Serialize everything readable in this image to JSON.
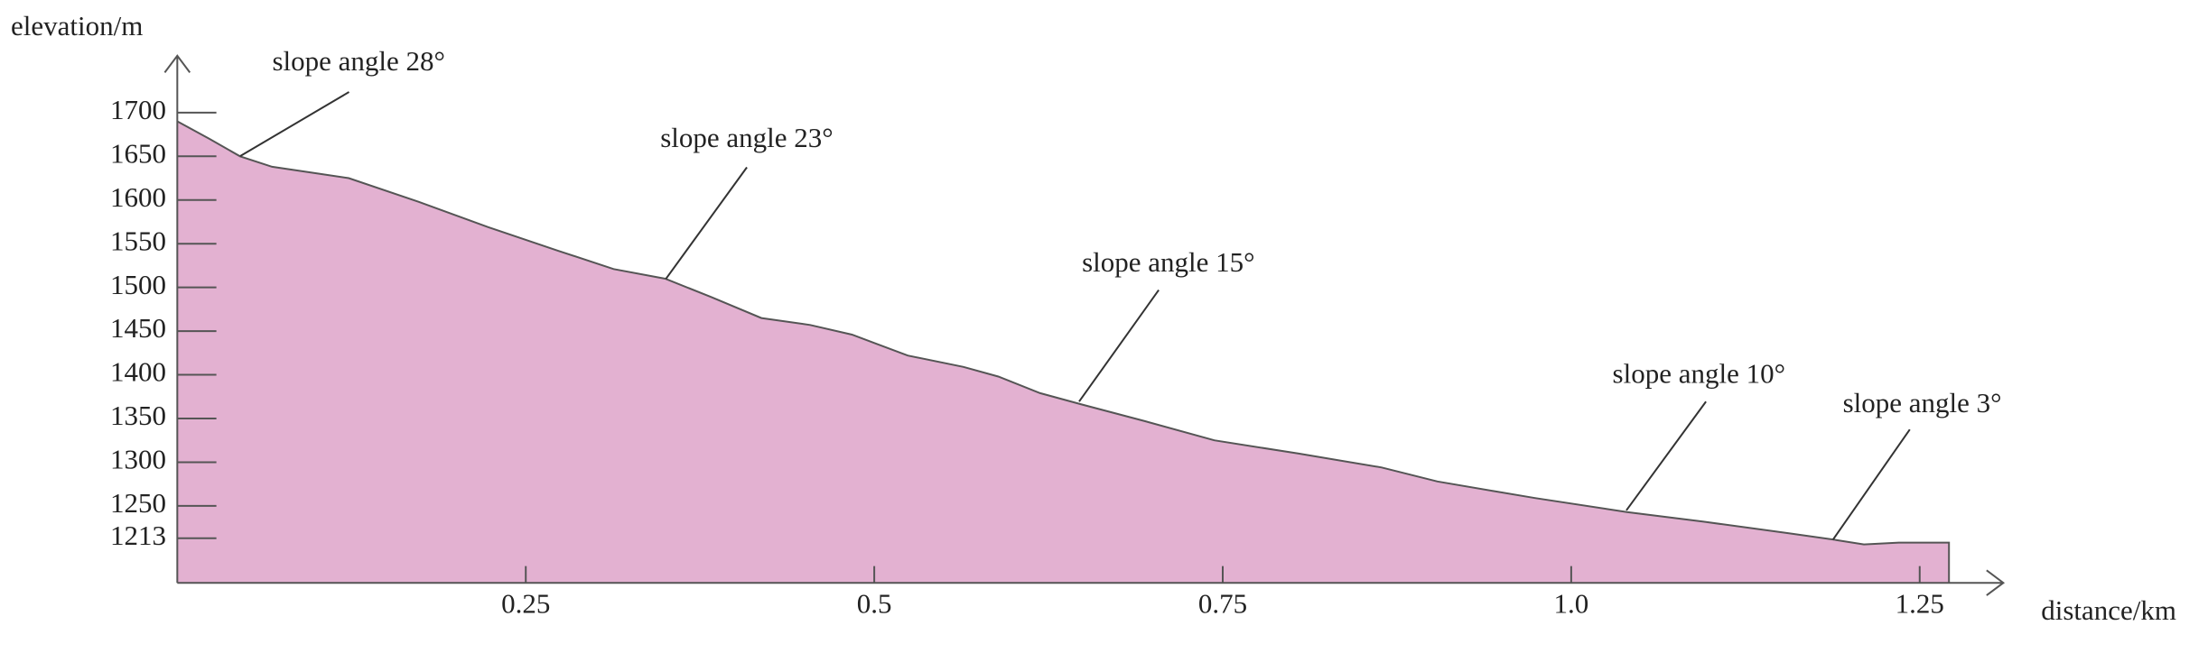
{
  "chart_data": {
    "type": "area",
    "x_label": "distance/km",
    "y_label": "elevation/m",
    "x": [
      0,
      0.023,
      0.045,
      0.068,
      0.098,
      0.123,
      0.173,
      0.223,
      0.273,
      0.313,
      0.35,
      0.383,
      0.419,
      0.454,
      0.484,
      0.524,
      0.564,
      0.589,
      0.619,
      0.649,
      0.694,
      0.744,
      0.804,
      0.864,
      0.904,
      0.944,
      0.974,
      1.04,
      1.095,
      1.155,
      1.19,
      1.21,
      1.235,
      1.271
    ],
    "values": [
      1690,
      1670,
      1650,
      1638,
      1631,
      1625,
      1598,
      1569,
      1542,
      1521,
      1510,
      1489,
      1465,
      1457,
      1446,
      1422,
      1409,
      1398,
      1379,
      1366,
      1347,
      1325,
      1310,
      1294,
      1278,
      1267,
      1259,
      1243,
      1232,
      1219,
      1211,
      1206,
      1208,
      1208
    ],
    "color": "#e3b1d1",
    "line_color": "#555555",
    "xlim": [
      0,
      1.31
    ],
    "ylim": [
      1162,
      1765
    ],
    "xticks": [
      0.25,
      0.5,
      0.75,
      {
        "value": 1,
        "label": "1.0"
      },
      1.25
    ],
    "yticks": [
      1213,
      1250,
      1300,
      1350,
      1400,
      1450,
      1500,
      1550,
      1600,
      1650,
      1700
    ],
    "annotations": [
      "slope angle 28°",
      "slope angle 23°",
      "slope angle 15°",
      "slope angle 10°",
      "slope angle 3°"
    ]
  }
}
